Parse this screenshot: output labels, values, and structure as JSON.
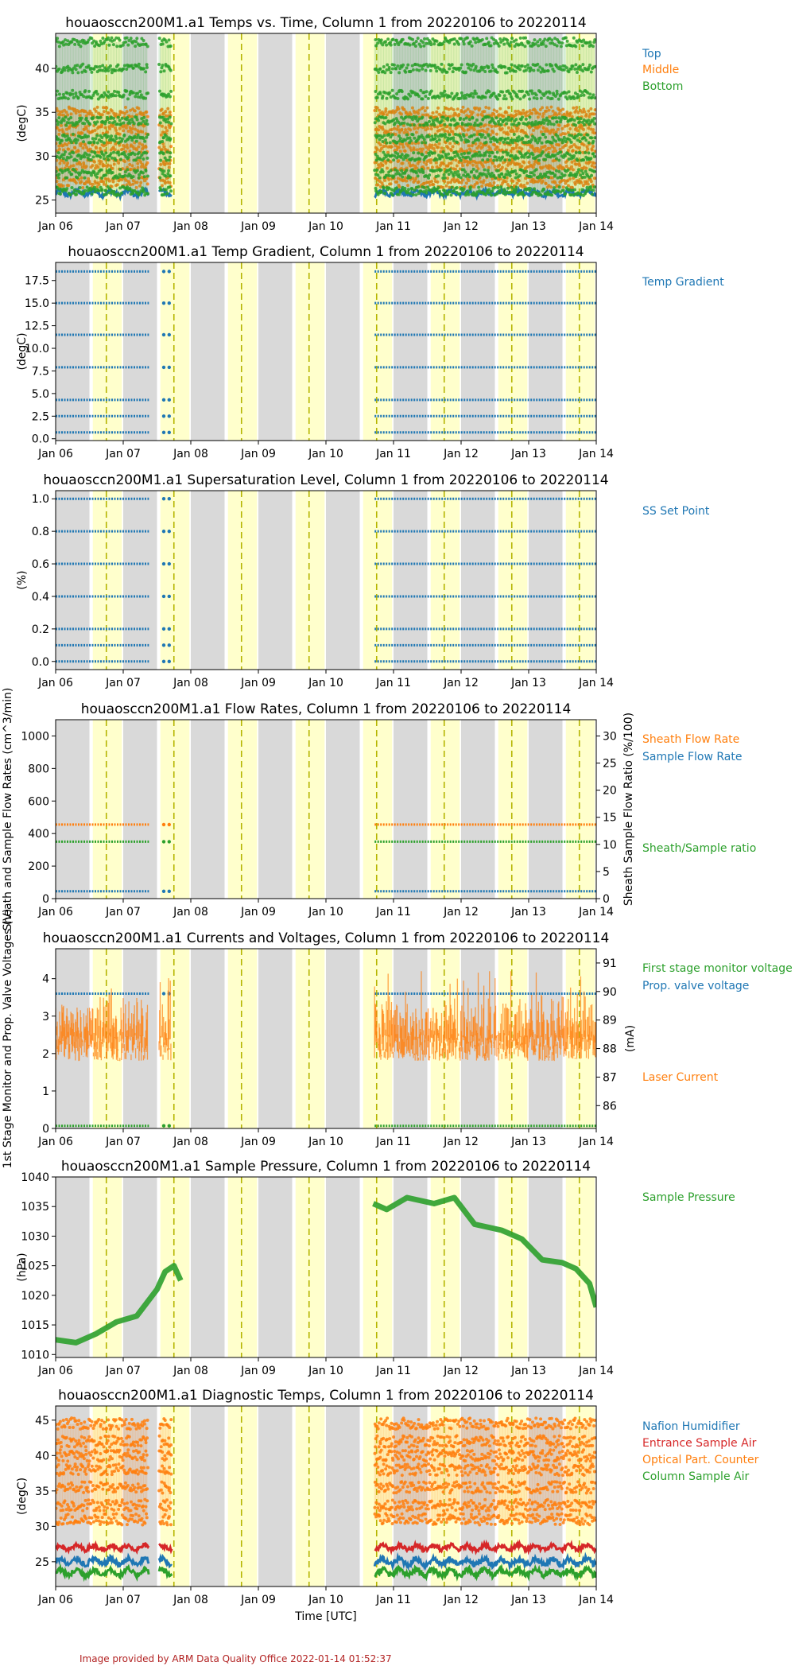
{
  "colors": {
    "blue": "#1f77b4",
    "orange": "#ff7f0e",
    "green": "#2ca02c",
    "red": "#d62728",
    "night": "#d9d9d9",
    "day": "#ffffcc",
    "noon": "#b5b500"
  },
  "x_ticks": [
    "Jan 06",
    "Jan 07",
    "Jan 08",
    "Jan 09",
    "Jan 10",
    "Jan 11",
    "Jan 12",
    "Jan 13",
    "Jan 14"
  ],
  "xlabel": "Time [UTC]",
  "footer": "Image provided by ARM Data Quality Office 2022-01-14 01:52:37",
  "chart_data": [
    {
      "type": "scatter",
      "title": "houaosccn200M1.a1 Temps vs. Time, Column 1 from 20220106 to 20220114",
      "ylabel": "(degC)",
      "ylim": [
        23.5,
        44
      ],
      "yticks": [
        25,
        30,
        35,
        40
      ],
      "series": [
        {
          "name": "Top",
          "color": "blue",
          "kind": "baseline",
          "base": 25.8,
          "amp": 0.5
        },
        {
          "name": "Middle",
          "color": "orange",
          "kind": "levels",
          "levels": [
            27,
            29,
            31,
            33,
            35
          ],
          "jitter": 0.6
        },
        {
          "name": "Bottom",
          "color": "green",
          "kind": "levels",
          "levels": [
            26,
            28,
            30,
            32,
            34,
            37,
            40,
            43
          ],
          "jitter": 0.5
        }
      ]
    },
    {
      "type": "scatter",
      "title": "houaosccn200M1.a1 Temp Gradient, Column 1 from 20220106 to 20220114",
      "ylabel": "(degC)",
      "ylim": [
        -0.2,
        19.5
      ],
      "yticks": [
        0.0,
        2.5,
        5.0,
        7.5,
        10.0,
        12.5,
        15.0,
        17.5
      ],
      "series": [
        {
          "name": "Temp Gradient",
          "color": "blue",
          "kind": "flat",
          "levels": [
            0.7,
            2.5,
            4.3,
            7.9,
            11.5,
            15.0,
            18.5
          ]
        }
      ]
    },
    {
      "type": "scatter",
      "title": "houaosccn200M1.a1 Supersaturation Level, Column 1 from 20220106 to 20220114",
      "ylabel": "(%)",
      "ylim": [
        -0.05,
        1.05
      ],
      "yticks": [
        0.0,
        0.2,
        0.4,
        0.6,
        0.8,
        1.0
      ],
      "series": [
        {
          "name": "SS Set Point",
          "color": "blue",
          "kind": "flat",
          "levels": [
            0.0,
            0.1,
            0.2,
            0.4,
            0.6,
            0.8,
            1.0
          ]
        }
      ]
    },
    {
      "type": "scatter",
      "title": "houaosccn200M1.a1 Flow Rates, Column 1 from 20220106 to 20220114",
      "ylabel": "Sheath and Sample Flow Rates (cm^3/min)",
      "ylim": [
        0,
        1100
      ],
      "yticks": [
        0,
        200,
        400,
        600,
        800,
        1000
      ],
      "ylabel2": "Sheath Sample Flow Ratio (%/100)",
      "ylim2": [
        0,
        33
      ],
      "yticks2": [
        0,
        5,
        10,
        15,
        20,
        25,
        30
      ],
      "series": [
        {
          "name": "Sheath Flow Rate",
          "color": "orange",
          "kind": "flat",
          "levels": [
            455
          ]
        },
        {
          "name": "Sample Flow Rate",
          "color": "blue",
          "kind": "flat",
          "levels": [
            45
          ]
        },
        {
          "name": "Sheath/Sample ratio",
          "color": "green",
          "kind": "flat",
          "levels": [
            350
          ]
        }
      ]
    },
    {
      "type": "scatter",
      "title": "houaosccn200M1.a1 Currents and Voltages, Column 1 from 20220106 to 20220114",
      "ylabel": "1st Stage Monitor and Prop. Valve Voltages (V)",
      "ylim": [
        0,
        4.8
      ],
      "yticks": [
        0,
        1,
        2,
        3,
        4
      ],
      "ylabel2": "(mA)",
      "ylim2": [
        85.2,
        91.5
      ],
      "yticks2": [
        86,
        87,
        88,
        89,
        90,
        91
      ],
      "series": [
        {
          "name": "First stage monitor voltage",
          "color": "green",
          "kind": "flat",
          "levels": [
            0.07
          ]
        },
        {
          "name": "Prop. valve voltage",
          "color": "blue",
          "kind": "flat",
          "levels": [
            3.6
          ]
        },
        {
          "name": "Laser Current",
          "color": "orange",
          "kind": "band",
          "lo": 1.8,
          "hi": 3.2,
          "spike": 4.2
        }
      ]
    },
    {
      "type": "scatter",
      "title": "houaosccn200M1.a1 Sample Pressure, Column 1 from 20220106 to 20220114",
      "ylabel": "(hPa)",
      "ylim": [
        1009.5,
        1040
      ],
      "yticks": [
        1010,
        1015,
        1020,
        1025,
        1030,
        1035,
        1040
      ],
      "series": [
        {
          "name": "Sample Pressure",
          "color": "green",
          "kind": "curve",
          "x": [
            0,
            0.3,
            0.6,
            0.9,
            1.2,
            1.5,
            1.62,
            1.75,
            1.85,
            4.7,
            4.9,
            5.2,
            5.6,
            5.9,
            6.2,
            6.6,
            6.9,
            7.2,
            7.5,
            7.7,
            7.9,
            8.0
          ],
          "y": [
            1012.5,
            1012.0,
            1013.5,
            1015.5,
            1016.5,
            1021.0,
            1024.0,
            1025.0,
            1022.5,
            1035.5,
            1034.5,
            1036.5,
            1035.5,
            1036.5,
            1032.0,
            1031.0,
            1029.5,
            1026.0,
            1025.5,
            1024.5,
            1022.0,
            1018.0
          ]
        }
      ]
    },
    {
      "type": "scatter",
      "title": "houaosccn200M1.a1 Diagnostic Temps, Column 1 from 20220106 to 20220114",
      "ylabel": "(degC)",
      "ylim": [
        21.5,
        47
      ],
      "yticks": [
        25,
        30,
        35,
        40,
        45
      ],
      "series": [
        {
          "name": "Nafion Humidifier",
          "color": "blue",
          "kind": "baseline",
          "base": 25.0,
          "amp": 0.8
        },
        {
          "name": "Entrance Sample Air",
          "color": "red",
          "kind": "baseline",
          "base": 27.0,
          "amp": 0.6
        },
        {
          "name": "Optical Part. Counter",
          "color": "orange",
          "kind": "levels",
          "levels": [
            31,
            33,
            35.5,
            38,
            40,
            42,
            44.5
          ],
          "jitter": 0.8
        },
        {
          "name": "Column Sample Air",
          "color": "green",
          "kind": "baseline",
          "base": 23.5,
          "amp": 0.8
        }
      ]
    }
  ]
}
